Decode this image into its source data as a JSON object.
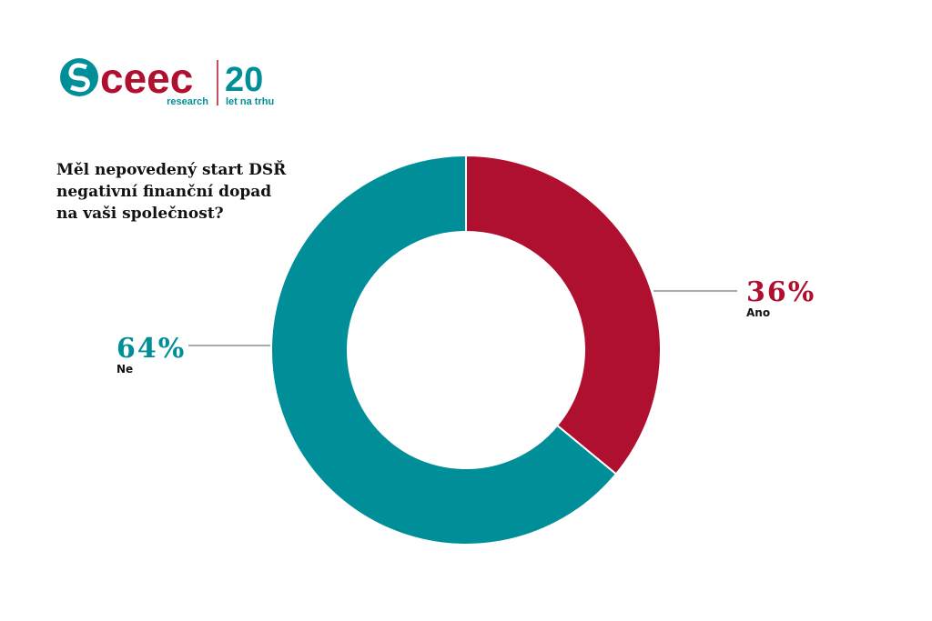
{
  "logo": {
    "name": "ceec",
    "sub": "research",
    "years": "20",
    "years_sub": "let na trhu"
  },
  "chart_data": {
    "type": "donut",
    "title": [
      "Měl nepovedený start DSŘ",
      "negativní finanční dopad",
      "na vaši společnost?"
    ],
    "categories": [
      "Ano",
      "Ne"
    ],
    "values": [
      36,
      64
    ],
    "value_labels": [
      "36%",
      "64%"
    ],
    "colors": [
      "#b0102f",
      "#008f99"
    ]
  }
}
